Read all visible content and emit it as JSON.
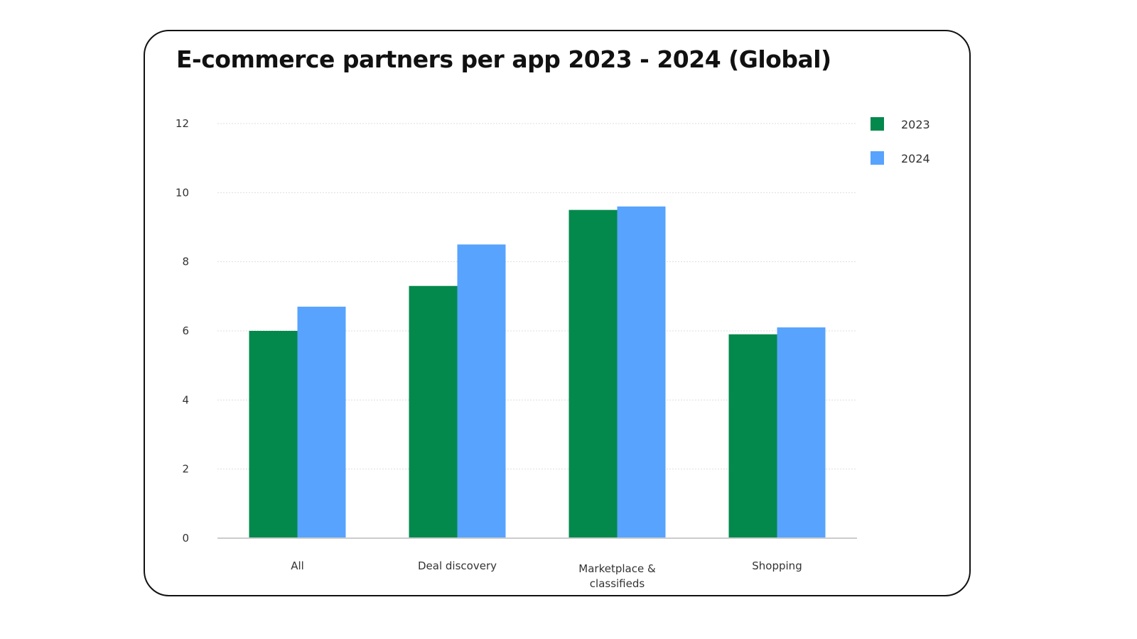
{
  "chart_data": {
    "type": "bar",
    "title": "E-commerce partners per app 2023 - 2024 (Global)",
    "xlabel": "",
    "ylabel": "",
    "categories": [
      "All",
      "Deal discovery",
      "Marketplace & classifieds",
      "Shopping"
    ],
    "category_lines": [
      [
        "All"
      ],
      [
        "Deal discovery"
      ],
      [
        "Marketplace &",
        "classifieds"
      ],
      [
        "Shopping"
      ]
    ],
    "series": [
      {
        "name": "2023",
        "color": "#03894c",
        "values": [
          6.0,
          7.3,
          9.5,
          5.9
        ]
      },
      {
        "name": "2024",
        "color": "#57a3fd",
        "values": [
          6.7,
          8.5,
          9.6,
          6.1
        ]
      }
    ],
    "ylim": [
      0,
      12
    ],
    "yticks": [
      0,
      2,
      4,
      6,
      8,
      10,
      12
    ],
    "grid": true,
    "legend": "top-right"
  }
}
